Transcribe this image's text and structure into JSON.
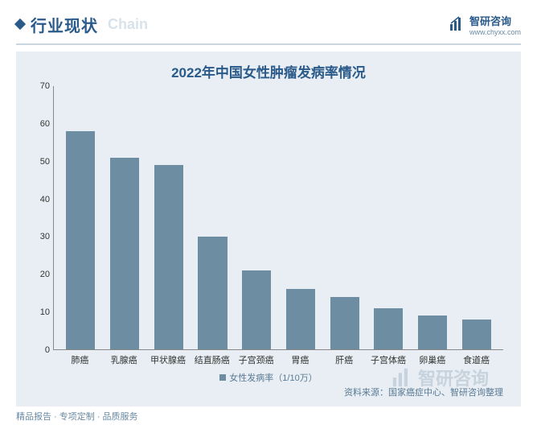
{
  "header": {
    "section_title": "行业现状",
    "faded_text": "Chain",
    "brand_name": "智研咨询",
    "brand_url": "www.chyxx.com"
  },
  "chart": {
    "type": "bar",
    "title": "2022年中国女性肿瘤发病率情况",
    "categories": [
      "肺癌",
      "乳腺癌",
      "甲状腺癌",
      "结直肠癌",
      "子宫颈癌",
      "胃癌",
      "肝癌",
      "子宫体癌",
      "卵巢癌",
      "食道癌"
    ],
    "values": [
      58,
      51,
      49,
      30,
      21,
      16,
      14,
      11,
      9,
      8
    ],
    "bar_color": "#6d8da3",
    "background_color": "#e8eef3",
    "axis_color": "#888888",
    "ylim": [
      0,
      70
    ],
    "ytick_step": 10,
    "yticks": [
      0,
      10,
      20,
      30,
      40,
      50,
      60,
      70
    ],
    "bar_width": 0.66,
    "legend_label": "女性发病率（1/10万）",
    "source_text": "资料来源：国家癌症中心、智研咨询整理",
    "label_fontsize": 11,
    "title_fontsize": 17,
    "title_color": "#2a5a8a",
    "text_color": "#333333"
  },
  "footer": {
    "text": "精品报告 · 专项定制 · 品质服务"
  },
  "watermark": {
    "text": "智研咨询"
  }
}
